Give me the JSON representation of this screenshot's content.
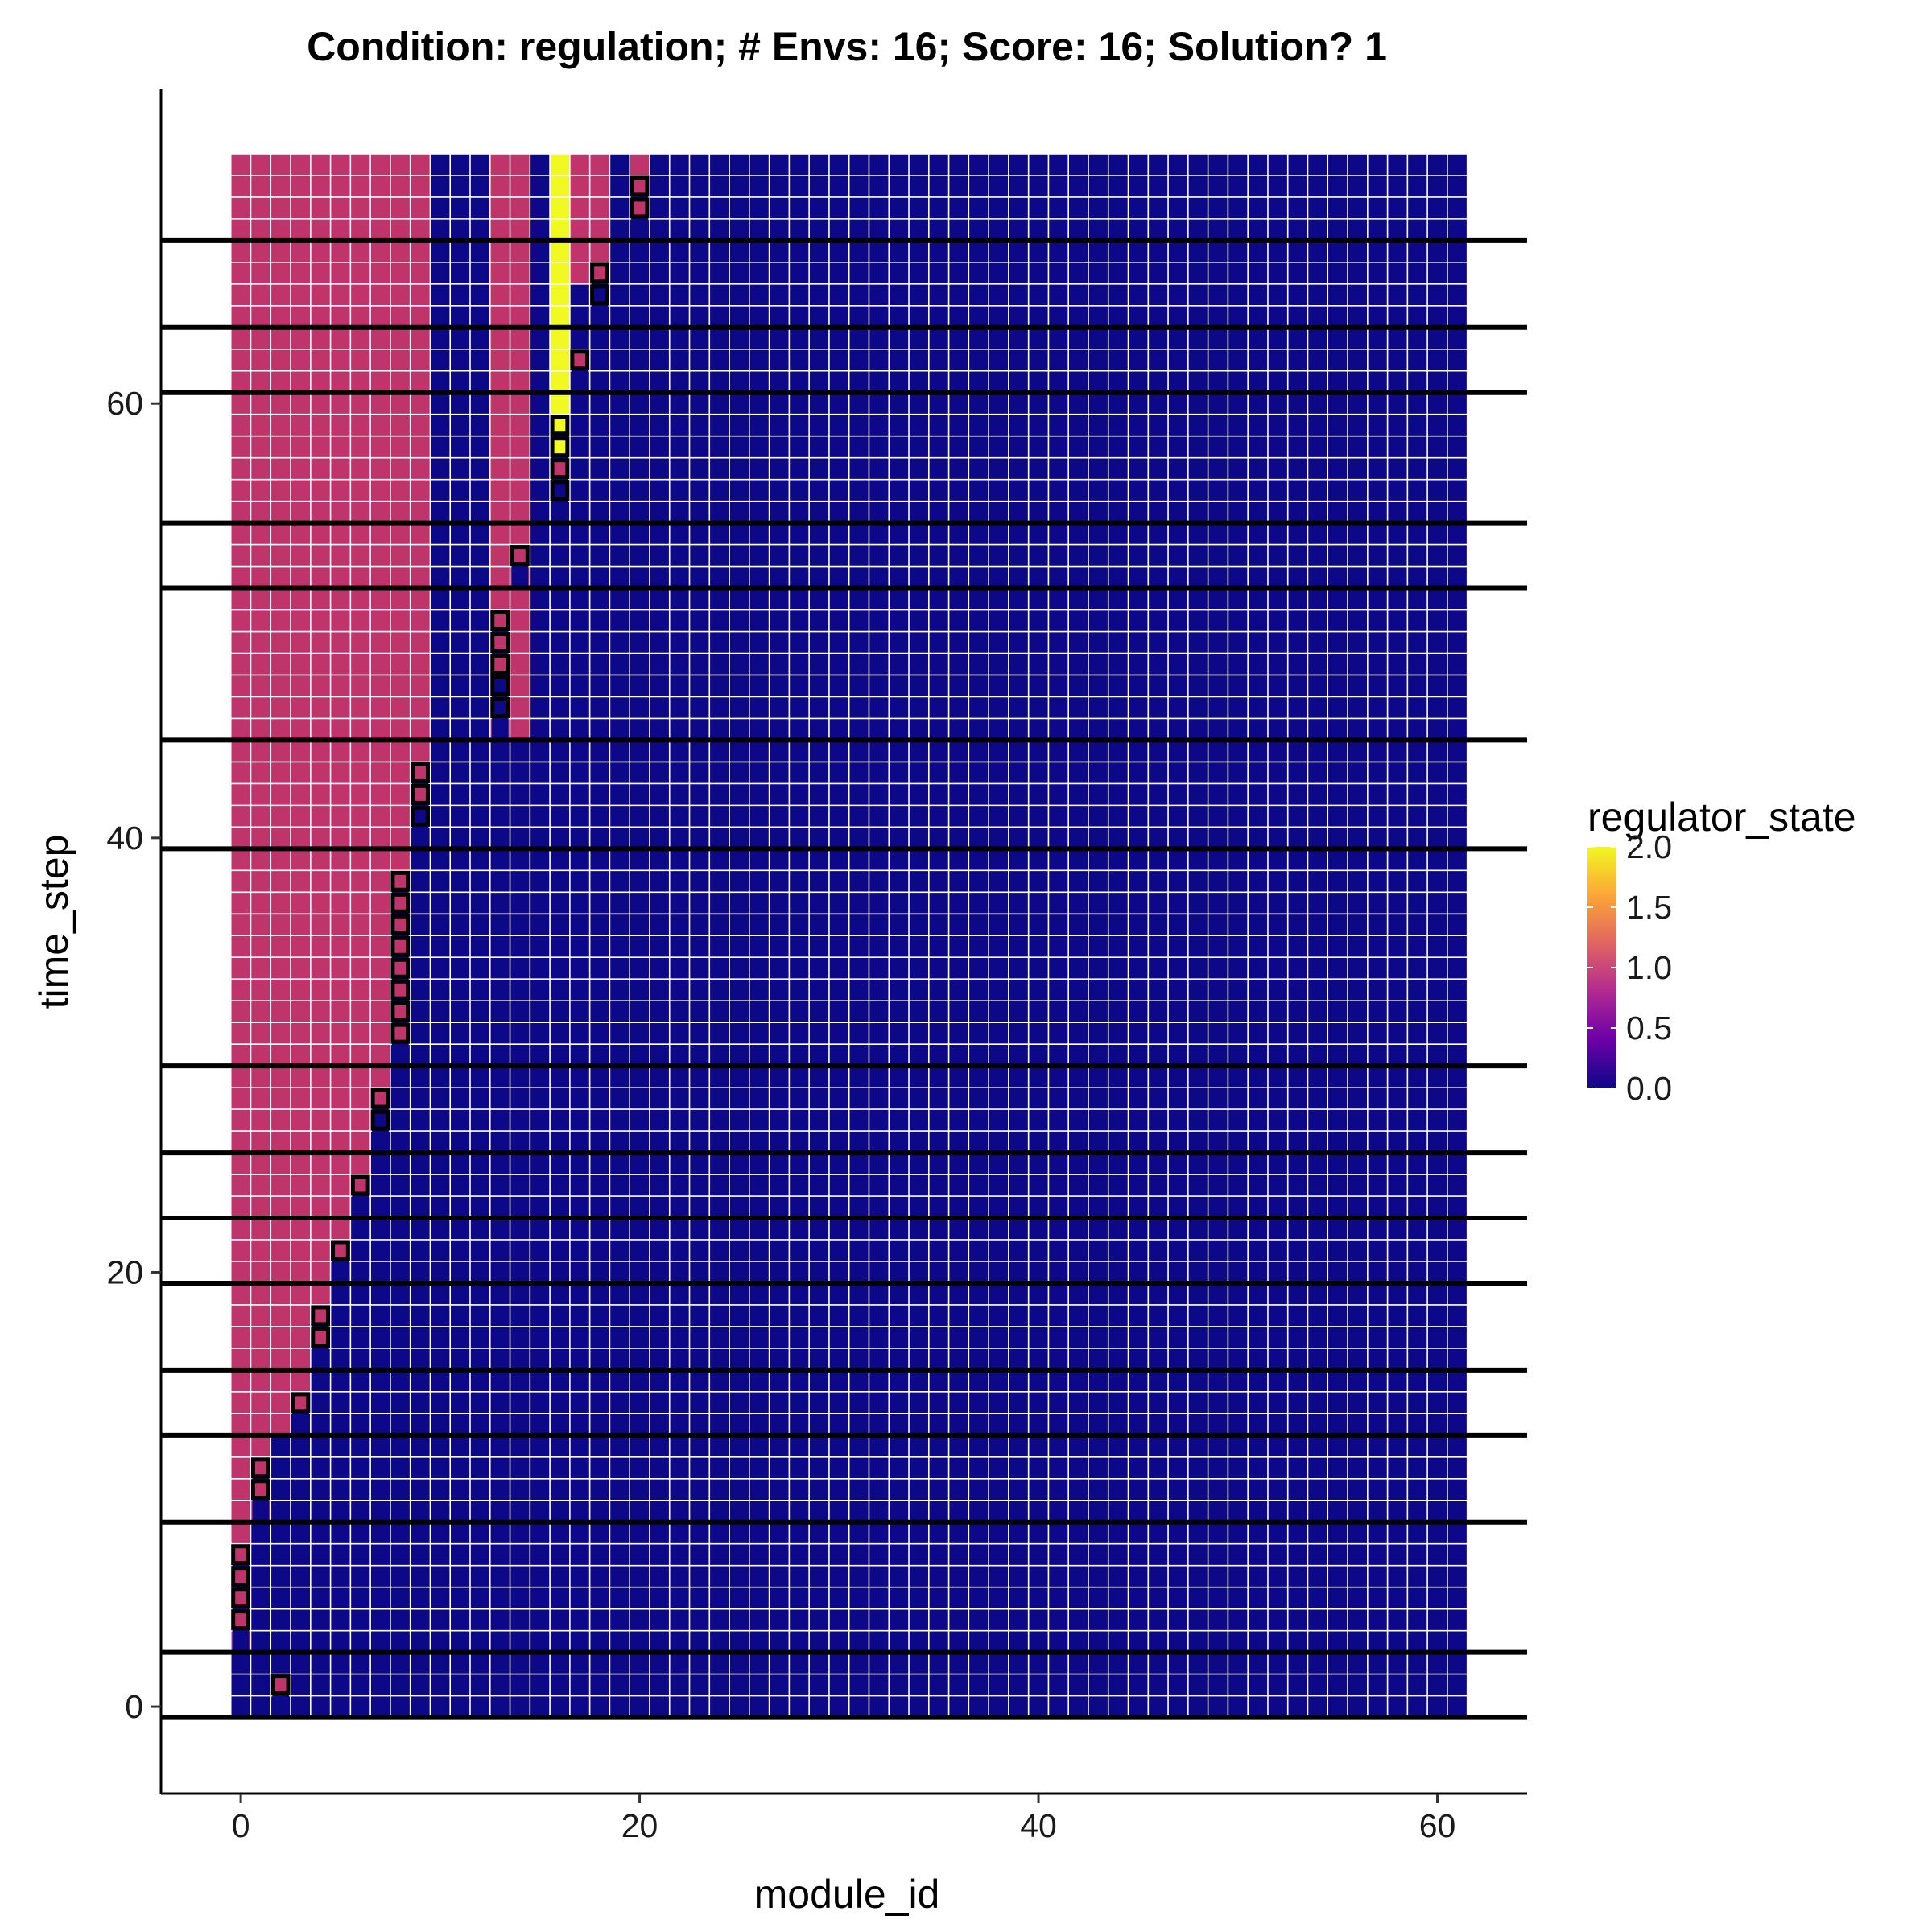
{
  "chart_data": {
    "type": "heatmap",
    "title": "Condition: regulation; # Envs: 16; Score: 16; Solution? 1",
    "xlabel": "module_id",
    "ylabel": "time_step",
    "xlim": [
      -4,
      64.5
    ],
    "ylim": [
      -4,
      74.5
    ],
    "x_ticks": [
      0,
      20,
      40,
      60
    ],
    "y_ticks": [
      0,
      20,
      40,
      60
    ],
    "x_range": [
      0,
      61
    ],
    "y_range": [
      0,
      71
    ],
    "grid": false,
    "colormap": "plasma",
    "color_stops": [
      "#0d0887",
      "#6a00a8",
      "#b12a90",
      "#e16462",
      "#fca636",
      "#f0f921"
    ],
    "fill_range": [
      0,
      2
    ],
    "colors": {
      "background": "#0d0887",
      "state_one": "#c0346c",
      "state_two": "#f0f921",
      "highlight_border": "#000000",
      "grid_line": "#ffffff",
      "env_line": "#000000"
    },
    "legend": {
      "title": "regulator_state",
      "position": "right",
      "breaks": [
        0,
        0.5,
        1,
        1.5,
        2
      ],
      "labels": [
        "0.0",
        "0.5",
        "1.0",
        "1.5",
        "2.0"
      ]
    },
    "regions": [
      {
        "x": [
          0,
          9
        ],
        "y": [
          0,
          71
        ],
        "value": 1
      },
      {
        "x": [
          0,
          0
        ],
        "y": [
          0,
          2
        ],
        "value": 0
      },
      {
        "x": [
          1,
          1
        ],
        "y": [
          0,
          8
        ],
        "value": 0
      },
      {
        "x": [
          2,
          2
        ],
        "y": [
          0,
          12
        ],
        "value": 0
      },
      {
        "x": [
          3,
          3
        ],
        "y": [
          0,
          14
        ],
        "value": 0
      },
      {
        "x": [
          4,
          4
        ],
        "y": [
          0,
          17
        ],
        "value": 0
      },
      {
        "x": [
          5,
          5
        ],
        "y": [
          0,
          20
        ],
        "value": 0
      },
      {
        "x": [
          6,
          6
        ],
        "y": [
          0,
          23
        ],
        "value": 0
      },
      {
        "x": [
          7,
          7
        ],
        "y": [
          0,
          27
        ],
        "value": 0
      },
      {
        "x": [
          8,
          8
        ],
        "y": [
          0,
          38
        ],
        "value": 0
      },
      {
        "x": [
          9,
          9
        ],
        "y": [
          0,
          41
        ],
        "value": 0
      },
      {
        "x": [
          13,
          14
        ],
        "y": [
          45,
          71
        ],
        "value": 1
      },
      {
        "x": [
          16,
          16
        ],
        "y": [
          57,
          71
        ],
        "value": 2
      },
      {
        "x": [
          17,
          18
        ],
        "y": [
          66,
          71
        ],
        "value": 1
      },
      {
        "x": [
          20,
          20
        ],
        "y": [
          69,
          71
        ],
        "value": 1
      }
    ],
    "highlight_columns": [
      {
        "x": 2,
        "y": [
          0,
          1
        ]
      },
      {
        "x": 0,
        "y": [
          3,
          7
        ]
      },
      {
        "x": 1,
        "y": [
          9,
          11
        ]
      },
      {
        "x": 3,
        "y": [
          13,
          14
        ]
      },
      {
        "x": 4,
        "y": [
          16,
          18
        ]
      },
      {
        "x": 5,
        "y": [
          20,
          21
        ]
      },
      {
        "x": 6,
        "y": [
          23,
          24
        ]
      },
      {
        "x": 7,
        "y": [
          26,
          28
        ]
      },
      {
        "x": 8,
        "y": [
          30,
          38
        ]
      },
      {
        "x": 9,
        "y": [
          40,
          43
        ]
      },
      {
        "x": 13,
        "y": [
          45,
          50
        ]
      },
      {
        "x": 14,
        "y": [
          52,
          53
        ]
      },
      {
        "x": 16,
        "y": [
          55,
          59
        ]
      },
      {
        "x": 17,
        "y": [
          61,
          62
        ]
      },
      {
        "x": 18,
        "y": [
          64,
          66
        ]
      },
      {
        "x": 20,
        "y": [
          68,
          70
        ]
      }
    ],
    "highlight_cells": [
      {
        "x": 2,
        "y": 1,
        "value": 1
      },
      {
        "x": 0,
        "y": 4,
        "value": 1
      },
      {
        "x": 0,
        "y": 5,
        "value": 1
      },
      {
        "x": 0,
        "y": 6,
        "value": 1
      },
      {
        "x": 0,
        "y": 7,
        "value": 1
      },
      {
        "x": 1,
        "y": 10,
        "value": 1
      },
      {
        "x": 1,
        "y": 11,
        "value": 1
      },
      {
        "x": 3,
        "y": 14,
        "value": 1
      },
      {
        "x": 4,
        "y": 17,
        "value": 1
      },
      {
        "x": 4,
        "y": 18,
        "value": 1
      },
      {
        "x": 5,
        "y": 21,
        "value": 1
      },
      {
        "x": 6,
        "y": 24,
        "value": 1
      },
      {
        "x": 7,
        "y": 27,
        "value": 0
      },
      {
        "x": 7,
        "y": 28,
        "value": 1
      },
      {
        "x": 8,
        "y": 31,
        "value": 1
      },
      {
        "x": 8,
        "y": 32,
        "value": 1
      },
      {
        "x": 8,
        "y": 33,
        "value": 1
      },
      {
        "x": 8,
        "y": 34,
        "value": 1
      },
      {
        "x": 8,
        "y": 35,
        "value": 1
      },
      {
        "x": 8,
        "y": 36,
        "value": 1
      },
      {
        "x": 8,
        "y": 37,
        "value": 1
      },
      {
        "x": 8,
        "y": 38,
        "value": 1
      },
      {
        "x": 9,
        "y": 41,
        "value": 0
      },
      {
        "x": 9,
        "y": 42,
        "value": 1
      },
      {
        "x": 9,
        "y": 43,
        "value": 1
      },
      {
        "x": 13,
        "y": 46,
        "value": 0
      },
      {
        "x": 13,
        "y": 47,
        "value": 0
      },
      {
        "x": 13,
        "y": 48,
        "value": 1
      },
      {
        "x": 13,
        "y": 49,
        "value": 1
      },
      {
        "x": 13,
        "y": 50,
        "value": 1
      },
      {
        "x": 14,
        "y": 53,
        "value": 1
      },
      {
        "x": 16,
        "y": 56,
        "value": 0
      },
      {
        "x": 16,
        "y": 57,
        "value": 1
      },
      {
        "x": 16,
        "y": 58,
        "value": 2
      },
      {
        "x": 16,
        "y": 59,
        "value": 2
      },
      {
        "x": 17,
        "y": 62,
        "value": 1
      },
      {
        "x": 18,
        "y": 65,
        "value": 0
      },
      {
        "x": 18,
        "y": 66,
        "value": 1
      },
      {
        "x": 20,
        "y": 69,
        "value": 1
      },
      {
        "x": 20,
        "y": 70,
        "value": 1
      }
    ],
    "env_change_lines_y": [
      -0.5,
      2.5,
      8.5,
      12.5,
      15.5,
      19.5,
      22.5,
      25.5,
      29.5,
      39.5,
      44.5,
      51.5,
      54.5,
      60.5,
      63.5,
      67.5
    ]
  }
}
